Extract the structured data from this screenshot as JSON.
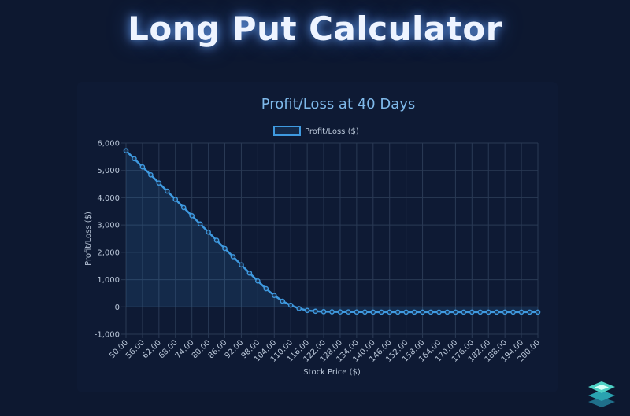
{
  "page": {
    "title": "Long Put Calculator"
  },
  "colors": {
    "background": "#0d1830",
    "line": "#3f9ae0",
    "fill": "rgba(63,154,224,0.13)",
    "grid": "#2a3a55",
    "text": "#b9c6d8",
    "chart_title": "#7fb9ea"
  },
  "logo": {
    "icon": "stacked-layers-icon"
  },
  "chart_data": {
    "type": "line",
    "title": "Profit/Loss at 40 Days",
    "xlabel": "Stock Price ($)",
    "ylabel": "Profit/Loss ($)",
    "ylim": [
      -1000,
      6000
    ],
    "yticks": [
      -1000,
      0,
      1000,
      2000,
      3000,
      4000,
      5000,
      6000
    ],
    "ytick_labels": [
      "-1,000",
      "0",
      "1,000",
      "2,000",
      "3,000",
      "4,000",
      "5,000",
      "6,000"
    ],
    "grid": true,
    "legend_position": "top",
    "categories": [
      "50.00",
      "53.00",
      "56.00",
      "59.00",
      "62.00",
      "65.00",
      "68.00",
      "71.00",
      "74.00",
      "77.00",
      "80.00",
      "83.00",
      "86.00",
      "89.00",
      "92.00",
      "95.00",
      "98.00",
      "101.00",
      "104.00",
      "107.00",
      "110.00",
      "113.00",
      "116.00",
      "119.00",
      "122.00",
      "125.00",
      "128.00",
      "131.00",
      "134.00",
      "137.00",
      "140.00",
      "143.00",
      "146.00",
      "149.00",
      "152.00",
      "155.00",
      "158.00",
      "161.00",
      "164.00",
      "167.00",
      "170.00",
      "173.00",
      "176.00",
      "179.00",
      "182.00",
      "185.00",
      "188.00",
      "191.00",
      "194.00",
      "197.00",
      "200.00"
    ],
    "tick_labels": [
      "50.00",
      "56.00",
      "62.00",
      "68.00",
      "74.00",
      "80.00",
      "86.00",
      "92.00",
      "98.00",
      "104.00",
      "110.00",
      "116.00",
      "122.00",
      "128.00",
      "134.00",
      "140.00",
      "146.00",
      "152.00",
      "158.00",
      "164.00",
      "170.00",
      "176.00",
      "182.00",
      "188.00",
      "194.00",
      "200.00"
    ],
    "series": [
      {
        "name": "Profit/Loss ($)",
        "values": [
          5720,
          5430,
          5130,
          4840,
          4540,
          4240,
          3940,
          3640,
          3340,
          3040,
          2740,
          2440,
          2140,
          1840,
          1540,
          1240,
          950,
          670,
          420,
          210,
          60,
          -60,
          -130,
          -160,
          -175,
          -180,
          -185,
          -185,
          -188,
          -188,
          -190,
          -190,
          -190,
          -190,
          -190,
          -190,
          -190,
          -190,
          -190,
          -190,
          -190,
          -190,
          -190,
          -190,
          -190,
          -190,
          -190,
          -190,
          -190,
          -190,
          -190
        ]
      }
    ]
  }
}
